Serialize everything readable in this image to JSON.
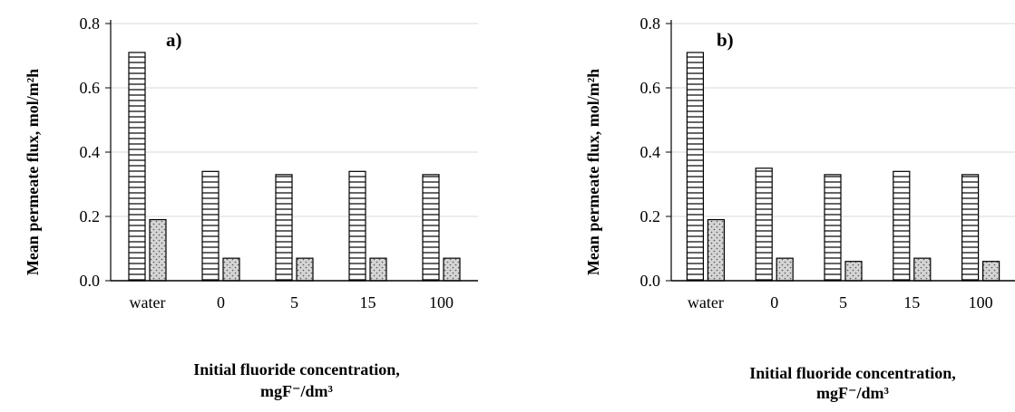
{
  "chart_data": [
    {
      "type": "bar",
      "panel_label": "a)",
      "categories": [
        "water",
        "0",
        "5",
        "15",
        "100"
      ],
      "series": [
        {
          "values": [
            0.71,
            0.34,
            0.33,
            0.34,
            0.33
          ],
          "pattern": "horizontal-lines"
        },
        {
          "values": [
            0.19,
            0.07,
            0.07,
            0.07,
            0.07
          ],
          "pattern": "dotted-gray"
        }
      ],
      "ylabel": "Mean permeate flux, mol/m²h",
      "xlabel_line1": "Initial fluoride concentration,",
      "xlabel_line2": "mgF⁻/dm³",
      "ylim": [
        0,
        0.8
      ],
      "yticks": [
        "0.0",
        "0.2",
        "0.4",
        "0.6",
        "0.8"
      ],
      "grid": true
    },
    {
      "type": "bar",
      "panel_label": "b)",
      "categories": [
        "water",
        "0",
        "5",
        "15",
        "100"
      ],
      "series": [
        {
          "values": [
            0.71,
            0.35,
            0.33,
            0.34,
            0.33
          ],
          "pattern": "horizontal-lines"
        },
        {
          "values": [
            0.19,
            0.07,
            0.06,
            0.07,
            0.06
          ],
          "pattern": "dotted-gray"
        }
      ],
      "ylabel": "Mean permeate flux, mol/m²h",
      "xlabel_line1": "Initial fluoride concentration,",
      "xlabel_line2": "mgF⁻/dm³",
      "ylim": [
        0,
        0.8
      ],
      "yticks": [
        "0.0",
        "0.2",
        "0.4",
        "0.6",
        "0.8"
      ],
      "grid": true
    }
  ]
}
